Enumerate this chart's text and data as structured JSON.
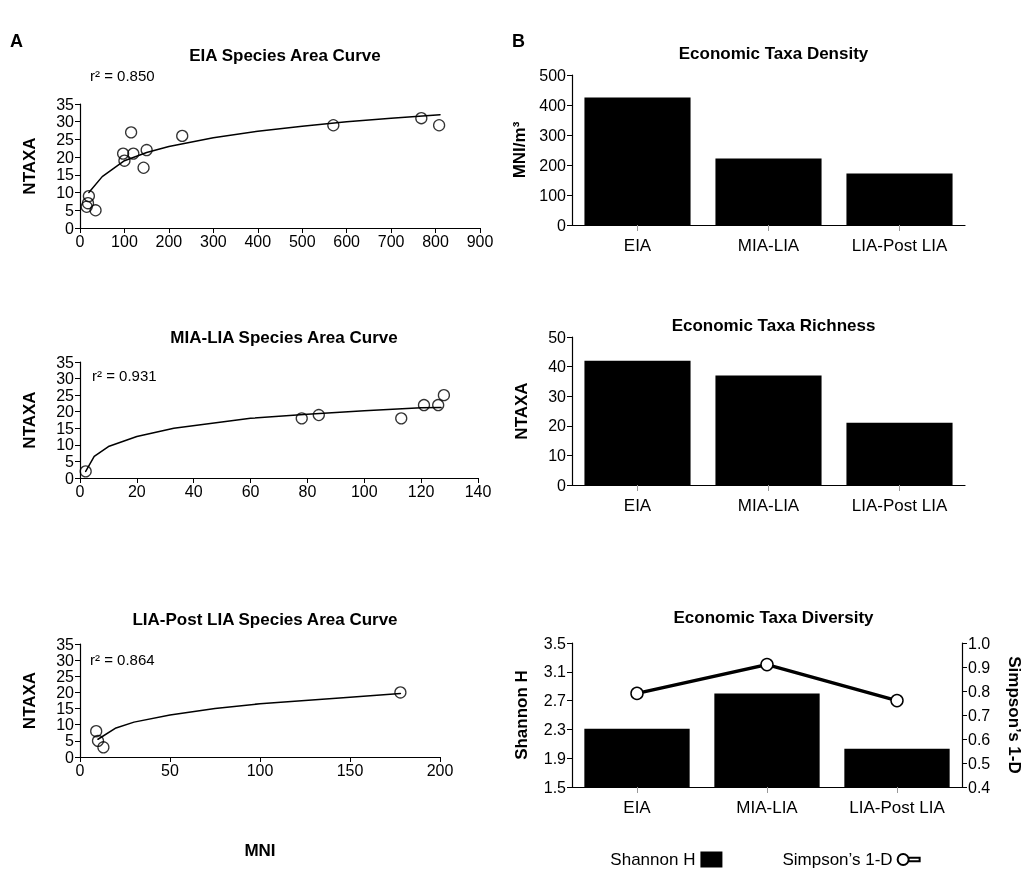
{
  "chart_data": [
    {
      "type": "scatter",
      "title": "EIA Species Area Curve",
      "ylabel": "NTAXA",
      "annotations": [
        "A",
        "r² = 0.850"
      ],
      "xlim": [
        0,
        900
      ],
      "xticks": [
        0,
        100,
        200,
        300,
        400,
        500,
        600,
        700,
        800,
        900
      ],
      "ylim": [
        0,
        35
      ],
      "yticks": [
        0,
        5,
        10,
        15,
        20,
        25,
        30,
        35
      ],
      "series": [
        {
          "color": "#000000",
          "marker": "circle",
          "x": [
            15,
            18,
            20,
            35,
            97,
            100,
            115,
            120,
            143,
            150,
            230,
            570,
            768,
            808
          ],
          "values": [
            6,
            7,
            9,
            5,
            21,
            19,
            27,
            21,
            17,
            22,
            26,
            29,
            31,
            29
          ]
        },
        {
          "type": "line",
          "color": "#000000",
          "marker": "none",
          "x": [
            20,
            50,
            100,
            150,
            200,
            300,
            400,
            500,
            600,
            700,
            810
          ],
          "values": [
            10,
            14.5,
            19,
            21.3,
            23,
            25.5,
            27.3,
            28.7,
            30,
            31,
            32
          ]
        }
      ]
    },
    {
      "type": "scatter",
      "title": "MIA-LIA Species Area Curve",
      "ylabel": "NTAXA",
      "annotations": [
        "r² = 0.931"
      ],
      "xlim": [
        0,
        140
      ],
      "xticks": [
        0,
        20,
        40,
        60,
        80,
        100,
        120,
        140
      ],
      "ylim": [
        0,
        35
      ],
      "yticks": [
        0,
        5,
        10,
        15,
        20,
        25,
        30,
        35
      ],
      "series": [
        {
          "color": "#000000",
          "marker": "circle",
          "x": [
            2,
            78,
            84,
            113,
            121,
            126,
            128
          ],
          "values": [
            2,
            18,
            19,
            18,
            22,
            22,
            25
          ]
        },
        {
          "type": "line",
          "color": "#000000",
          "marker": "none",
          "x": [
            2,
            5,
            10,
            20,
            33,
            60,
            80,
            100,
            120,
            127
          ],
          "values": [
            2,
            6.5,
            9.5,
            12.5,
            15,
            18,
            19.2,
            20.3,
            21.2,
            21.3
          ]
        }
      ]
    },
    {
      "type": "scatter",
      "title": "LIA-Post LIA Species Area Curve",
      "xlabel": "MNI",
      "ylabel": "NTAXA",
      "annotations": [
        "r² = 0.864"
      ],
      "xlim": [
        0,
        200
      ],
      "xticks": [
        0,
        50,
        100,
        150,
        200
      ],
      "ylim": [
        0,
        35
      ],
      "yticks": [
        0,
        5,
        10,
        15,
        20,
        25,
        30,
        35
      ],
      "series": [
        {
          "color": "#000000",
          "marker": "circle",
          "x": [
            9,
            10,
            13,
            178
          ],
          "values": [
            8,
            5,
            3,
            20
          ]
        },
        {
          "type": "line",
          "color": "#000000",
          "marker": "none",
          "x": [
            10,
            20,
            30,
            50,
            75,
            100,
            150,
            178
          ],
          "values": [
            5.5,
            9,
            10.8,
            13,
            15,
            16.5,
            18.5,
            19.7
          ]
        }
      ]
    },
    {
      "type": "bar",
      "title": "Economic Taxa Density",
      "ylabel": "MNI/m³",
      "annotations": [
        "B"
      ],
      "categories": [
        "EIA",
        "MIA-LIA",
        "LIA-Post LIA"
      ],
      "values": [
        425,
        222,
        172
      ],
      "color": "#000000",
      "ylim": [
        0,
        500
      ],
      "yticks": [
        0,
        100,
        200,
        300,
        400,
        500
      ]
    },
    {
      "type": "bar",
      "title": "Economic Taxa Richness",
      "ylabel": "NTAXA",
      "categories": [
        "EIA",
        "MIA-LIA",
        "LIA-Post LIA"
      ],
      "values": [
        42,
        37,
        21
      ],
      "color": "#000000",
      "ylim": [
        0,
        50
      ],
      "yticks": [
        0,
        10,
        20,
        30,
        40,
        50
      ]
    },
    {
      "type": "bar",
      "title": "Economic Taxa Diversity",
      "ylabel": "Shannon H",
      "y2label": "Simpson’s 1-D",
      "categories": [
        "EIA",
        "MIA-LIA",
        "LIA-Post LIA"
      ],
      "ylim": [
        1.5,
        3.5
      ],
      "yticks": [
        1.5,
        1.9,
        2.3,
        2.7,
        3.1,
        3.5
      ],
      "y2lim": [
        0.4,
        1.0
      ],
      "y2ticks": [
        0.4,
        0.5,
        0.6,
        0.7,
        0.8,
        0.9,
        {
          "value": 1.0,
          "label": "1.0"
        }
      ],
      "legend": "bottom",
      "series": [
        {
          "name": "Shannon H",
          "color": "#000000",
          "values": [
            2.31,
            2.8,
            2.03
          ]
        },
        {
          "name": "Simpson’s 1-D",
          "type": "line",
          "axis": "y2",
          "marker": "circle",
          "color": "#000000",
          "values": [
            0.79,
            0.91,
            0.76
          ]
        }
      ]
    }
  ]
}
